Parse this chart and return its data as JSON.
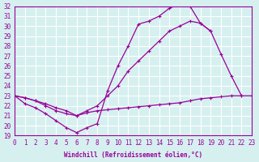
{
  "xlabel": "Windchill (Refroidissement éolien,°C)",
  "bg_color": "#d6f0f0",
  "line_color": "#990099",
  "grid_color": "#ffffff",
  "xmin": 0,
  "xmax": 23,
  "ymin": 19,
  "ymax": 32,
  "series1_x": [
    0,
    1,
    2,
    3,
    4,
    5,
    6,
    7,
    8,
    9,
    10,
    11,
    12,
    13,
    14,
    15,
    16,
    17,
    18,
    19,
    20,
    21,
    22
  ],
  "series1_y": [
    23.0,
    22.2,
    21.8,
    21.2,
    20.5,
    19.8,
    19.3,
    19.8,
    20.2,
    23.5,
    26.0,
    28.0,
    30.2,
    30.5,
    31.0,
    31.8,
    32.2,
    32.0,
    30.3,
    29.5,
    27.2,
    25.0,
    23.0
  ],
  "series2_x": [
    0,
    1,
    2,
    3,
    4,
    5,
    6,
    7,
    8,
    9,
    10,
    11,
    12,
    13,
    14,
    15,
    16,
    17,
    18,
    19,
    20,
    21,
    22
  ],
  "series2_y": [
    23.0,
    22.8,
    22.5,
    22.2,
    21.8,
    21.5,
    21.0,
    21.5,
    22.0,
    23.0,
    24.0,
    25.5,
    26.5,
    27.5,
    28.5,
    29.5,
    30.0,
    30.5,
    30.3,
    29.5,
    null,
    null,
    null
  ],
  "series3_x": [
    0,
    1,
    2,
    3,
    4,
    5,
    6,
    7,
    8,
    9,
    10,
    11,
    12,
    13,
    14,
    15,
    16,
    17,
    18,
    19,
    20,
    21,
    22,
    23
  ],
  "series3_y": [
    23.0,
    22.8,
    22.5,
    22.0,
    21.5,
    21.2,
    21.0,
    21.3,
    21.5,
    21.6,
    21.7,
    21.8,
    21.9,
    22.0,
    22.1,
    22.2,
    22.3,
    22.5,
    22.7,
    22.8,
    22.9,
    23.0,
    23.0,
    23.0
  ]
}
